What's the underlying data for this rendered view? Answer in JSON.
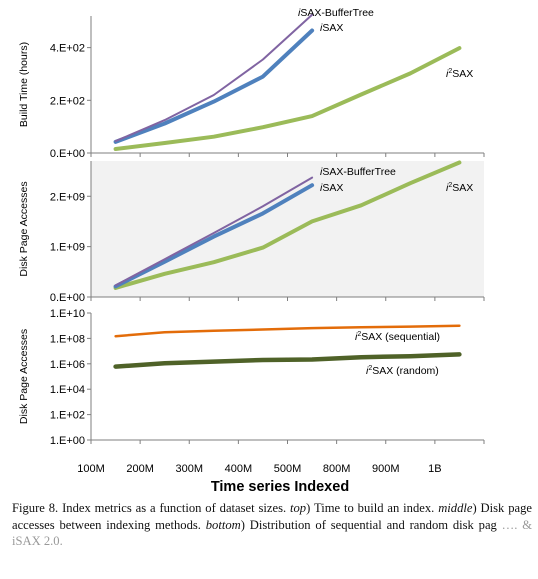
{
  "x_axis": {
    "categories": [
      "100M",
      "200M",
      "300M",
      "400M",
      "500M",
      "800M",
      "900M",
      "1B"
    ],
    "title": "Time series Indexed"
  },
  "chart_data": [
    {
      "type": "line",
      "ylabel": "Build Time (hours)",
      "ylim": [
        0,
        520
      ],
      "y_ticks": [
        "0.E+00",
        "2.E+02",
        "4.E+02"
      ],
      "y_tick_values": [
        0,
        200,
        400
      ],
      "background": "#ffffff",
      "grid": false,
      "series": [
        {
          "name": "iSAX-BufferTree",
          "color": "#8064a2",
          "values": [
            45,
            125,
            220,
            355,
            525,
            null,
            null,
            null
          ]
        },
        {
          "name": "iSAX",
          "color": "#4f81bd",
          "values": [
            42,
            112,
            195,
            290,
            465,
            null,
            null,
            null
          ]
        },
        {
          "name": "i2SAX",
          "color": "#9bbb59",
          "values": [
            15,
            38,
            62,
            98,
            140,
            222,
            302,
            398
          ]
        }
      ]
    },
    {
      "type": "line",
      "ylabel": "Disk Page Accesses",
      "ylim": [
        0,
        2700000000.0
      ],
      "y_ticks": [
        "0.E+00",
        "1.E+09",
        "2.E+09"
      ],
      "y_tick_values": [
        0,
        1000000000.0,
        2000000000.0
      ],
      "background": "#f2f2f2",
      "grid": false,
      "series": [
        {
          "name": "iSAX-BufferTree",
          "color": "#8064a2",
          "values": [
            230000000.0,
            750000000.0,
            1270000000.0,
            1800000000.0,
            2370000000.0,
            null,
            null,
            null
          ]
        },
        {
          "name": "iSAX",
          "color": "#4f81bd",
          "values": [
            210000000.0,
            700000000.0,
            1200000000.0,
            1660000000.0,
            2220000000.0,
            null,
            null,
            null
          ]
        },
        {
          "name": "i2SAX",
          "color": "#9bbb59",
          "values": [
            180000000.0,
            460000000.0,
            690000000.0,
            980000000.0,
            1500000000.0,
            1820000000.0,
            2260000000.0,
            2670000000.0
          ]
        }
      ]
    },
    {
      "type": "line",
      "ylabel": "Disk Page Accesses",
      "scale": "log",
      "ylim": [
        1,
        10000000000.0
      ],
      "y_ticks": [
        "1.E+00",
        "1.E+02",
        "1.E+04",
        "1.E+06",
        "1.E+08",
        "1.E+10"
      ],
      "y_tick_values": [
        1,
        100,
        10000,
        1000000,
        100000000,
        10000000000
      ],
      "background": "#ffffff",
      "grid": false,
      "series": [
        {
          "name": "i2SAX (sequential)",
          "color": "#e36c09",
          "values": [
            150000000.0,
            300000000.0,
            400000000.0,
            500000000.0,
            650000000.0,
            750000000.0,
            850000000.0,
            1000000000.0
          ]
        },
        {
          "name": "i2SAX (random)",
          "color": "#4f6228",
          "values": [
            600000.0,
            1100000.0,
            1500000.0,
            2000000.0,
            2200000.0,
            3300000.0,
            4000000.0,
            5500000.0
          ]
        }
      ]
    }
  ],
  "caption": {
    "figure_label": "Figure 8.",
    "text1": " Index metrics as a function of dataset sizes. ",
    "top_word": "top",
    "text2": ") Time to build an index. ",
    "middle_word": "middle",
    "text3": ") Disk page accesses between indexing methods. ",
    "bottom_word": "bottom",
    "text4": ") Distribution of sequential and random disk pag",
    "faded_tail": "…. & iSAX 2.0."
  }
}
